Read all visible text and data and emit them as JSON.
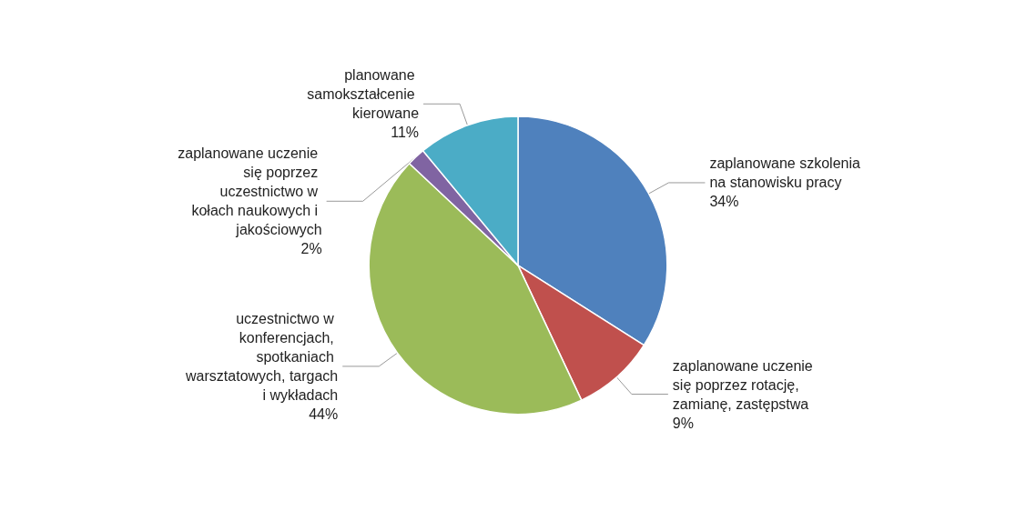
{
  "chart_data": {
    "type": "pie",
    "categories": [
      "zaplanowane szkolenia na stanowisku pracy",
      "zaplanowane uczenie się poprzez rotację, zamianę, zastępstwa",
      "uczestnictwo w konferencjach, spotkaniach warsztatowych, targach i wykładach",
      "zaplanowane uczenie się poprzez uczestnictwo w kołach naukowych i jakościowych",
      "planowane samokształcenie kierowane"
    ],
    "values": [
      34,
      9,
      44,
      2,
      11
    ],
    "colors": [
      "#4f81bd",
      "#c0504d",
      "#9bbb59",
      "#8064a2",
      "#4bacc6"
    ],
    "value_labels": [
      "34%",
      "9%",
      "44%",
      "2%",
      "11%"
    ],
    "legend": false
  }
}
